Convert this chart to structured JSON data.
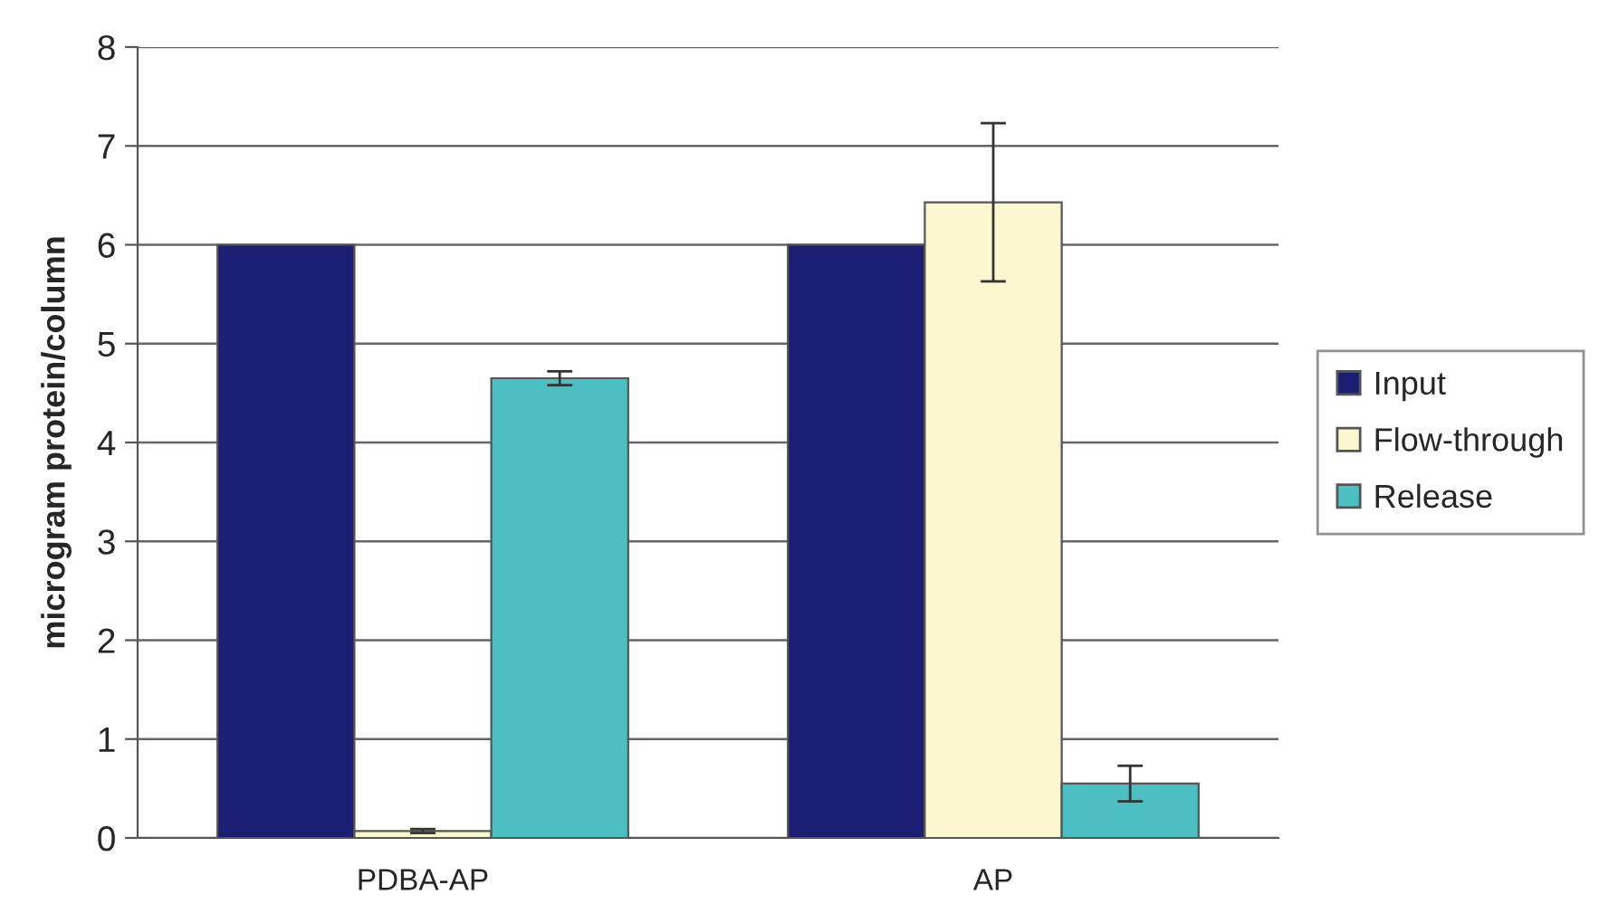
{
  "chart_data": {
    "type": "bar",
    "ylabel": "microgram protein/column",
    "categories": [
      "PDBA-AP",
      "AP"
    ],
    "series": [
      {
        "name": "Input",
        "color": "#1b1f73",
        "values": [
          6.0,
          6.0
        ]
      },
      {
        "name": "Flow-through",
        "color": "#fbf8d0",
        "values": [
          0.07,
          6.43
        ],
        "errors": [
          0.02,
          0.8
        ]
      },
      {
        "name": "Release",
        "color": "#4bbfc1",
        "values": [
          4.65,
          0.55
        ],
        "errors": [
          0.07,
          0.18
        ]
      }
    ],
    "ylim": [
      0,
      8
    ],
    "yticks": [
      0,
      1,
      2,
      3,
      4,
      5,
      6,
      7,
      8
    ],
    "grid": "y",
    "legend": "right"
  }
}
